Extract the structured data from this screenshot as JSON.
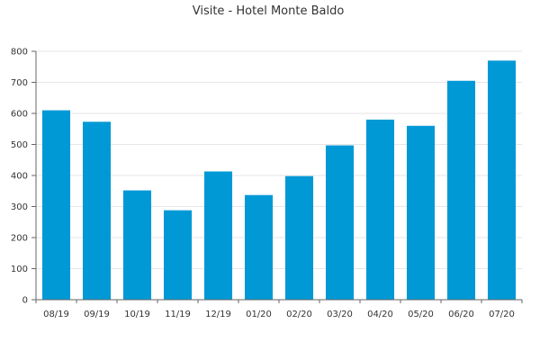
{
  "chart_data": {
    "type": "bar",
    "title": "Visite - Hotel Monte Baldo",
    "xlabel": "",
    "ylabel": "",
    "categories": [
      "08/19",
      "09/19",
      "10/19",
      "11/19",
      "12/19",
      "01/20",
      "02/20",
      "03/20",
      "04/20",
      "05/20",
      "06/20",
      "07/20"
    ],
    "values": [
      610,
      573,
      352,
      288,
      413,
      337,
      398,
      497,
      580,
      560,
      705,
      770
    ],
    "ylim": [
      0,
      800
    ],
    "yticks": [
      0,
      100,
      200,
      300,
      400,
      500,
      600,
      700,
      800
    ],
    "grid": true,
    "legend": "none",
    "bar_color": "#0099d6"
  }
}
